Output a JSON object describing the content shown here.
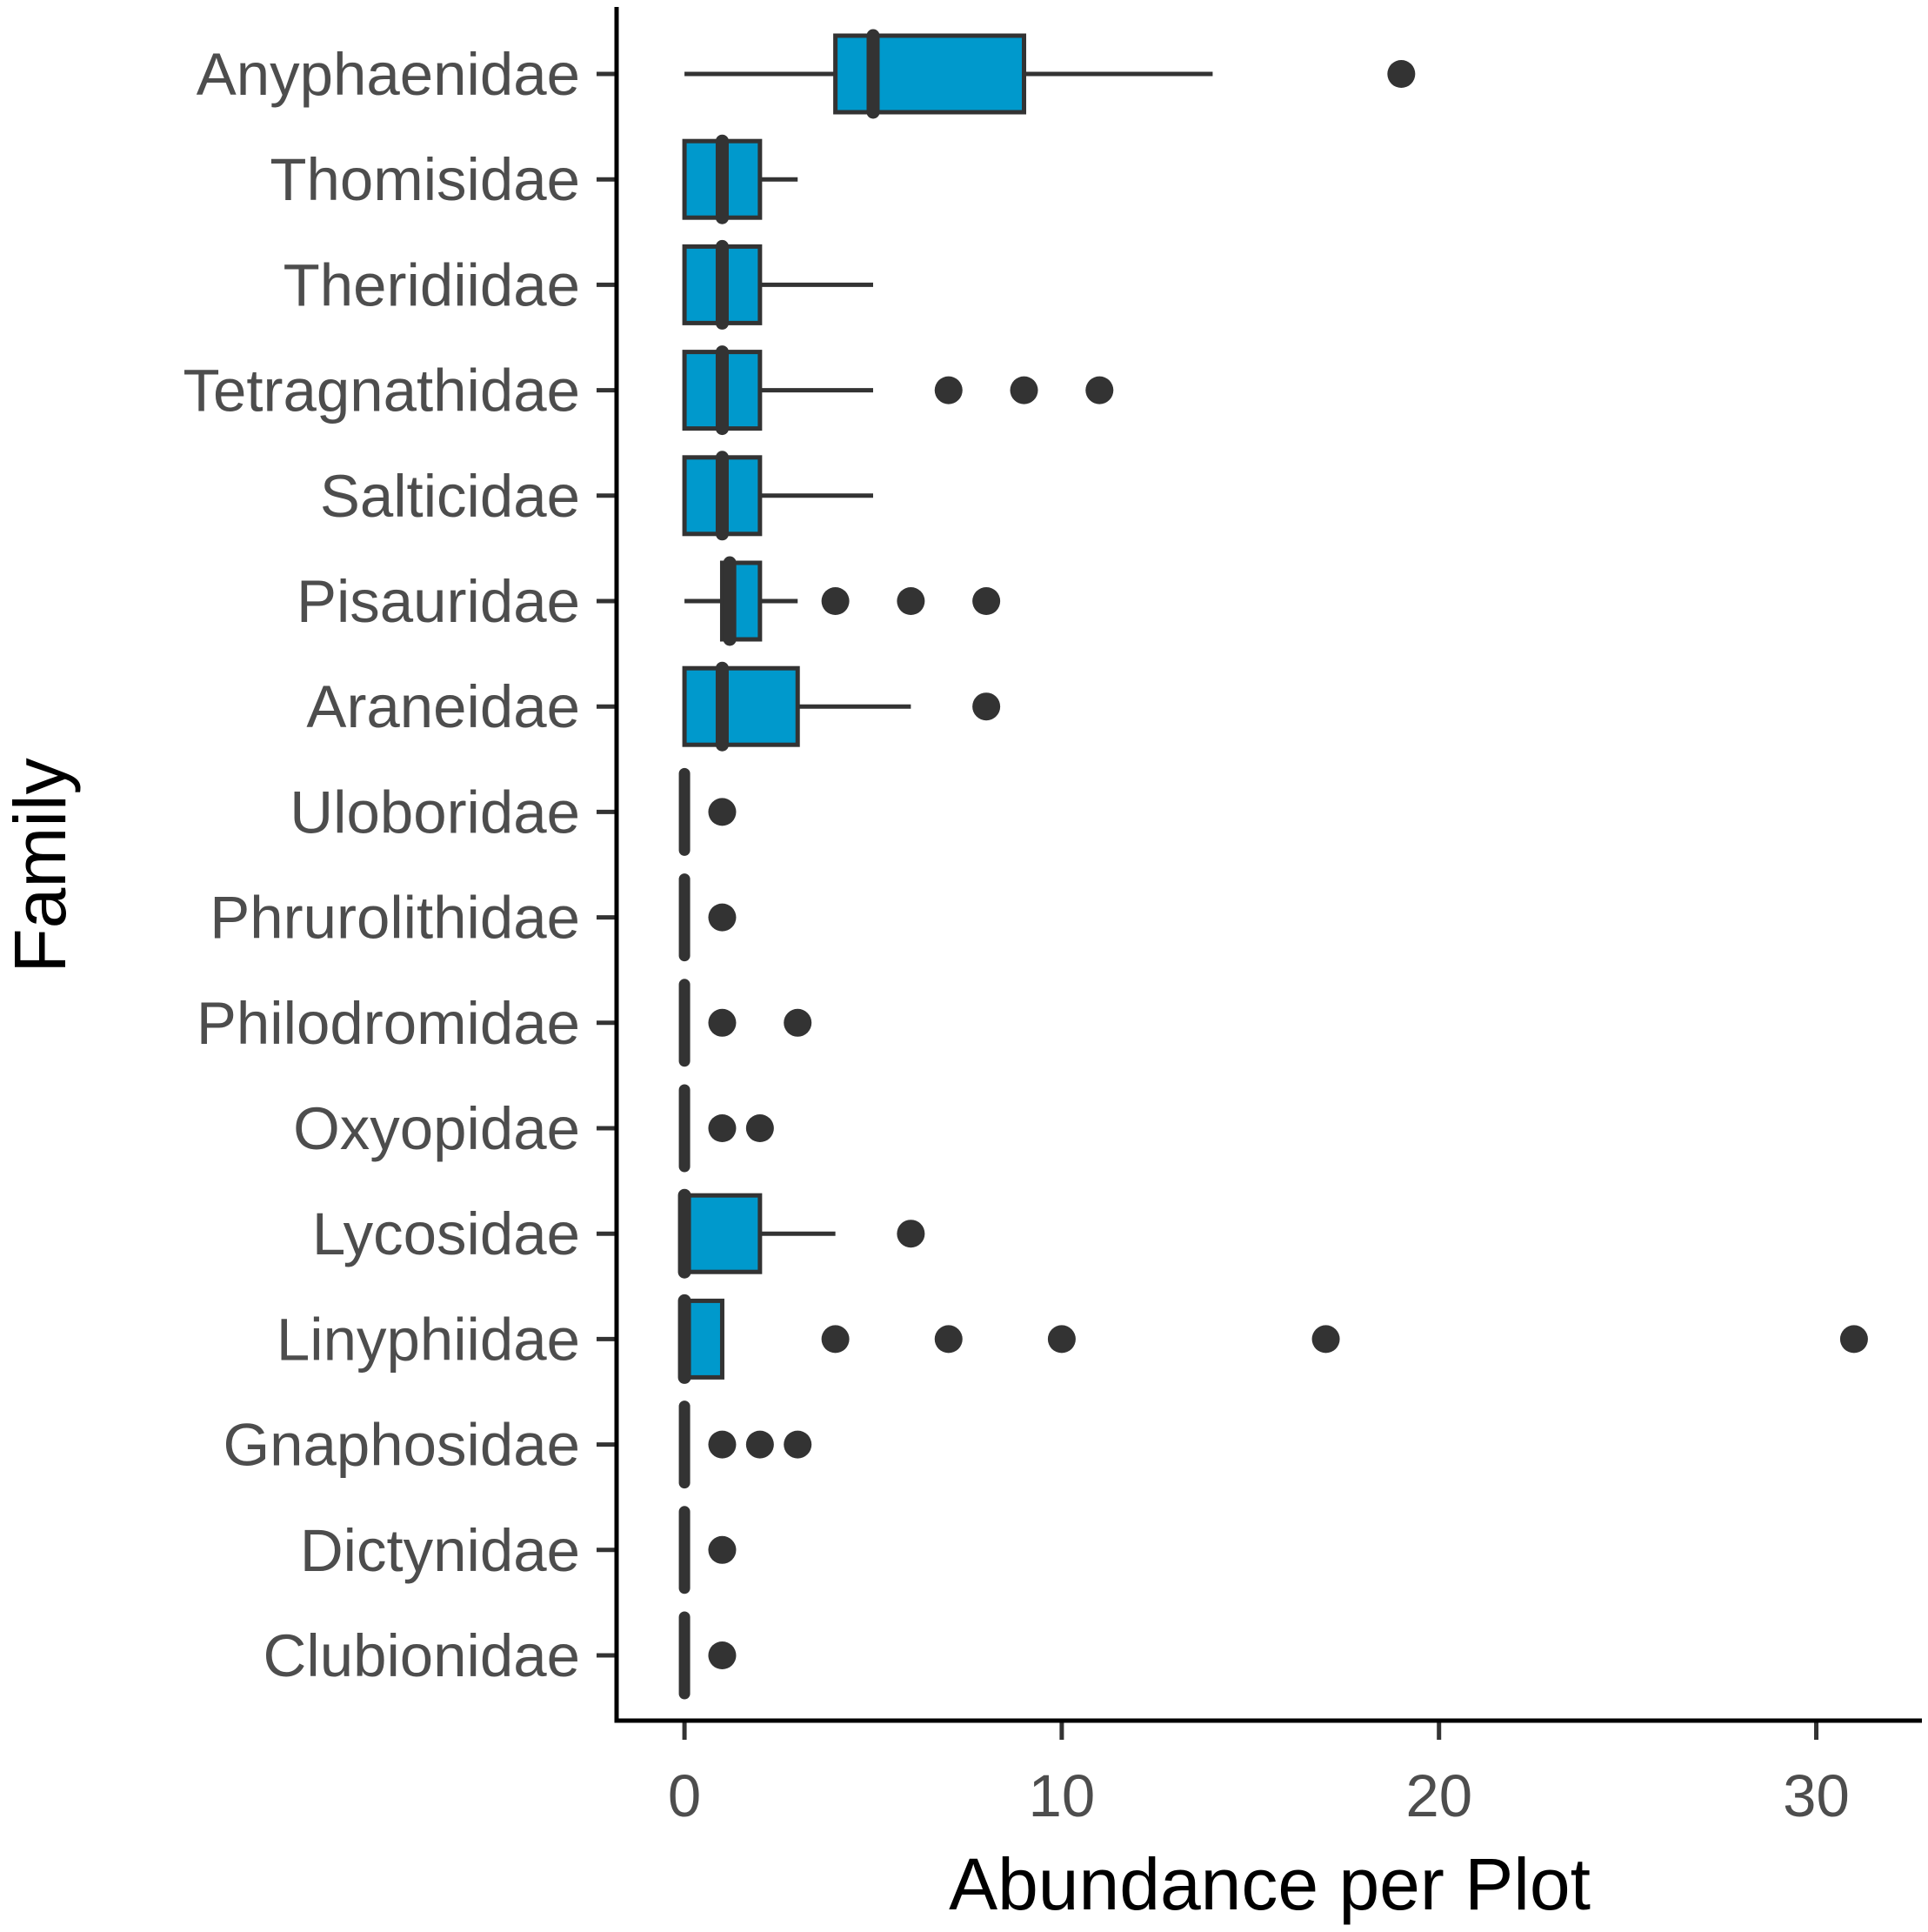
{
  "chart_data": {
    "type": "boxplot",
    "orientation": "horizontal",
    "xlabel": "Abundance per Plot",
    "ylabel": "Family",
    "xlim": [
      -1.8,
      32.8
    ],
    "xticks": [
      0,
      10,
      20,
      30
    ],
    "xtick_labels": [
      "0",
      "10",
      "20",
      "30"
    ],
    "grid": false,
    "box_fill": "#0099cc",
    "box_edge": "#333333",
    "outlier_color": "#333333",
    "categories": [
      {
        "name": "Anyphaenidae",
        "min": 0,
        "q1": 4,
        "median": 5,
        "q3": 9,
        "max": 14,
        "outliers": [
          19
        ]
      },
      {
        "name": "Thomisidae",
        "min": 0,
        "q1": 0,
        "median": 1,
        "q3": 2,
        "max": 3,
        "outliers": []
      },
      {
        "name": "Theridiidae",
        "min": 0,
        "q1": 0,
        "median": 1,
        "q3": 2,
        "max": 5,
        "outliers": []
      },
      {
        "name": "Tetragnathidae",
        "min": 0,
        "q1": 0,
        "median": 1,
        "q3": 2,
        "max": 5,
        "outliers": [
          7,
          9,
          11
        ]
      },
      {
        "name": "Salticidae",
        "min": 0,
        "q1": 0,
        "median": 1,
        "q3": 2,
        "max": 5,
        "outliers": []
      },
      {
        "name": "Pisauridae",
        "min": 0,
        "q1": 1,
        "median": 1.2,
        "q3": 2,
        "max": 3,
        "outliers": [
          4,
          6,
          8
        ]
      },
      {
        "name": "Araneidae",
        "min": 0,
        "q1": 0,
        "median": 1,
        "q3": 3,
        "max": 6,
        "outliers": [
          8
        ]
      },
      {
        "name": "Uloboridae",
        "min": 0,
        "q1": 0,
        "median": 0,
        "q3": 0,
        "max": 0,
        "outliers": [
          1
        ]
      },
      {
        "name": "Phrurolithidae",
        "min": 0,
        "q1": 0,
        "median": 0,
        "q3": 0,
        "max": 0,
        "outliers": [
          1
        ]
      },
      {
        "name": "Philodromidae",
        "min": 0,
        "q1": 0,
        "median": 0,
        "q3": 0,
        "max": 0,
        "outliers": [
          1,
          3
        ]
      },
      {
        "name": "Oxyopidae",
        "min": 0,
        "q1": 0,
        "median": 0,
        "q3": 0,
        "max": 0,
        "outliers": [
          1,
          2
        ]
      },
      {
        "name": "Lycosidae",
        "min": 0,
        "q1": 0,
        "median": 0,
        "q3": 2,
        "max": 4,
        "outliers": [
          6
        ]
      },
      {
        "name": "Linyphiidae",
        "min": 0,
        "q1": 0,
        "median": 0,
        "q3": 1,
        "max": 1,
        "outliers": [
          4,
          7,
          10,
          17,
          31
        ]
      },
      {
        "name": "Gnaphosidae",
        "min": 0,
        "q1": 0,
        "median": 0,
        "q3": 0,
        "max": 0,
        "outliers": [
          1,
          2,
          3
        ]
      },
      {
        "name": "Dictynidae",
        "min": 0,
        "q1": 0,
        "median": 0,
        "q3": 0,
        "max": 0,
        "outliers": [
          1
        ]
      },
      {
        "name": "Clubionidae",
        "min": 0,
        "q1": 0,
        "median": 0,
        "q3": 0,
        "max": 0,
        "outliers": [
          1
        ]
      }
    ]
  }
}
